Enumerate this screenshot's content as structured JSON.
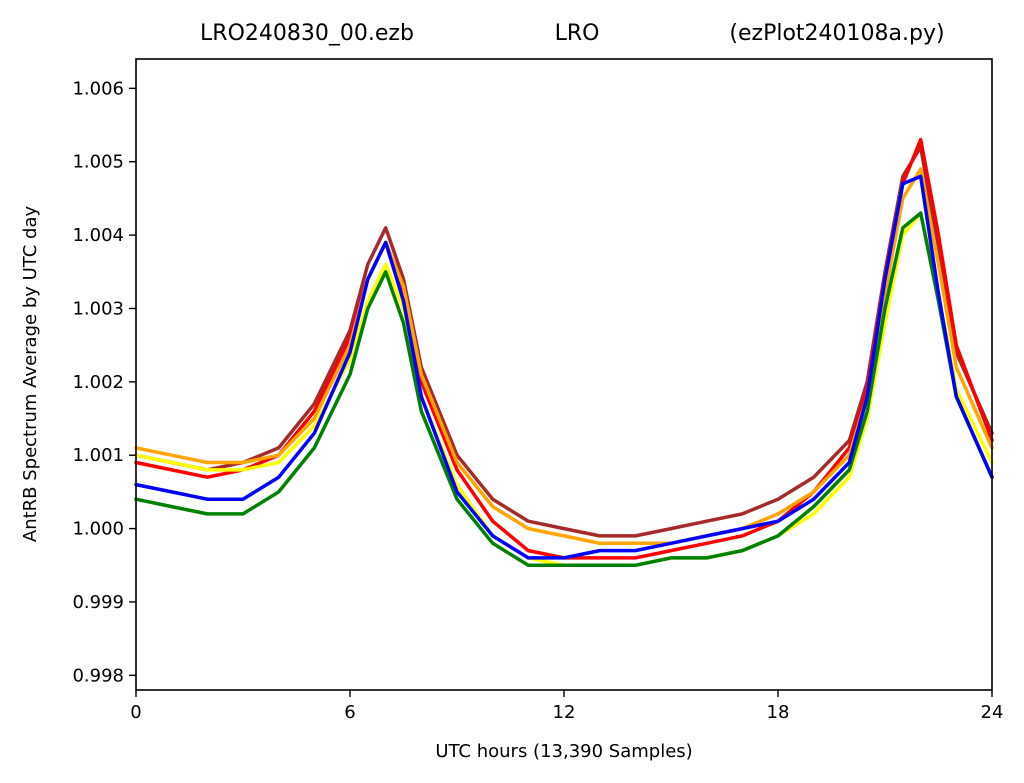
{
  "title": {
    "left": "LRO240830_00.ezb",
    "center": "LRO",
    "right": "(ezPlot240108a.py)"
  },
  "chart_data": {
    "type": "line",
    "xlabel": "UTC hours  (13,390 Samples)",
    "ylabel": "AntRB Spectrum Average by UTC day",
    "xlim": [
      0,
      24
    ],
    "ylim": [
      0.9978,
      1.0064
    ],
    "xticks": [
      0,
      6,
      12,
      18,
      24
    ],
    "xtick_labels": [
      "0",
      "6",
      "12",
      "18",
      "24"
    ],
    "yticks": [
      0.998,
      0.999,
      1.0,
      1.001,
      1.002,
      1.003,
      1.004,
      1.005,
      1.006
    ],
    "ytick_labels": [
      "0.998",
      "0.999",
      "1.000",
      "1.001",
      "1.002",
      "1.003",
      "1.004",
      "1.005",
      "1.006"
    ],
    "grid": false,
    "legend": "none",
    "series": [
      {
        "color": "#a52a2a",
        "x": [
          0,
          1,
          2,
          3,
          4,
          5,
          6,
          6.5,
          7,
          7.5,
          8,
          9,
          10,
          11,
          12,
          13,
          14,
          15,
          16,
          17,
          18,
          19,
          20,
          20.5,
          21,
          21.5,
          22,
          22.5,
          23,
          24
        ],
        "y": [
          1.001,
          1.0009,
          1.0008,
          1.0009,
          1.0011,
          1.0017,
          1.0027,
          1.0036,
          1.0041,
          1.0034,
          1.0022,
          1.001,
          1.0004,
          1.0001,
          1.0,
          0.9999,
          0.9999,
          1.0,
          1.0001,
          1.0002,
          1.0004,
          1.0007,
          1.0012,
          1.002,
          1.0035,
          1.0048,
          1.0052,
          1.0038,
          1.0024,
          1.0013
        ]
      },
      {
        "color": "#ff0000",
        "x": [
          0,
          1,
          2,
          3,
          4,
          5,
          6,
          6.5,
          7,
          7.5,
          8,
          9,
          10,
          11,
          12,
          13,
          14,
          15,
          16,
          17,
          18,
          19,
          20,
          20.5,
          21,
          21.5,
          22,
          22.5,
          23,
          24
        ],
        "y": [
          1.0009,
          1.0008,
          1.0007,
          1.0008,
          1.001,
          1.0016,
          1.0026,
          1.0034,
          1.0039,
          1.0032,
          1.002,
          1.0008,
          1.0001,
          0.9997,
          0.9996,
          0.9996,
          0.9996,
          0.9997,
          0.9998,
          0.9999,
          1.0001,
          1.0005,
          1.0011,
          1.0019,
          1.0034,
          1.0047,
          1.0053,
          1.004,
          1.0025,
          1.0012
        ]
      },
      {
        "color": "#ffa500",
        "x": [
          0,
          1,
          2,
          3,
          4,
          5,
          6,
          6.5,
          7,
          7.5,
          8,
          9,
          10,
          11,
          12,
          13,
          14,
          15,
          16,
          17,
          18,
          19,
          20,
          20.5,
          21,
          21.5,
          22,
          22.5,
          23,
          24
        ],
        "y": [
          1.0011,
          1.001,
          1.0009,
          1.0009,
          1.001,
          1.0015,
          1.0025,
          1.0034,
          1.0039,
          1.0033,
          1.0021,
          1.0009,
          1.0003,
          1.0,
          0.9999,
          0.9998,
          0.9998,
          0.9998,
          0.9999,
          1.0,
          1.0002,
          1.0005,
          1.001,
          1.0018,
          1.0032,
          1.0045,
          1.0049,
          1.0036,
          1.0022,
          1.0011
        ]
      },
      {
        "color": "#ffff00",
        "x": [
          0,
          1,
          2,
          3,
          4,
          5,
          6,
          6.5,
          7,
          7.5,
          8,
          9,
          10,
          11,
          12,
          13,
          14,
          15,
          16,
          17,
          18,
          19,
          20,
          20.5,
          21,
          21.5,
          22,
          22.5,
          23,
          24
        ],
        "y": [
          1.001,
          1.0009,
          1.0008,
          1.0008,
          1.0009,
          1.0014,
          1.0023,
          1.0031,
          1.0036,
          1.003,
          1.0018,
          1.0006,
          0.9999,
          0.9996,
          0.9995,
          0.9995,
          0.9995,
          0.9996,
          0.9996,
          0.9997,
          0.9999,
          1.0002,
          1.0007,
          1.0015,
          1.0028,
          1.004,
          1.0043,
          1.0032,
          1.0019,
          1.0009
        ]
      },
      {
        "color": "#008000",
        "x": [
          0,
          1,
          2,
          3,
          4,
          5,
          6,
          6.5,
          7,
          7.5,
          8,
          9,
          10,
          11,
          12,
          13,
          14,
          15,
          16,
          17,
          18,
          19,
          20,
          20.5,
          21,
          21.5,
          22,
          22.5,
          23,
          24
        ],
        "y": [
          1.0004,
          1.0003,
          1.0002,
          1.0002,
          1.0005,
          1.0011,
          1.0021,
          1.003,
          1.0035,
          1.0028,
          1.0016,
          1.0004,
          0.9998,
          0.9995,
          0.9995,
          0.9995,
          0.9995,
          0.9996,
          0.9996,
          0.9997,
          0.9999,
          1.0003,
          1.0008,
          1.0016,
          1.003,
          1.0041,
          1.0043,
          1.0031,
          1.0018,
          1.0007
        ]
      },
      {
        "color": "#0000ff",
        "x": [
          0,
          1,
          2,
          3,
          4,
          5,
          6,
          6.5,
          7,
          7.5,
          8,
          9,
          10,
          11,
          12,
          13,
          14,
          15,
          16,
          17,
          18,
          19,
          20,
          20.5,
          21,
          21.5,
          22,
          22.5,
          23,
          24
        ],
        "y": [
          1.0006,
          1.0005,
          1.0004,
          1.0004,
          1.0007,
          1.0013,
          1.0024,
          1.0034,
          1.0039,
          1.0031,
          1.0018,
          1.0005,
          0.9999,
          0.9996,
          0.9996,
          0.9997,
          0.9997,
          0.9998,
          0.9999,
          1.0,
          1.0001,
          1.0004,
          1.0009,
          1.0018,
          1.0034,
          1.0047,
          1.0048,
          1.0032,
          1.0018,
          1.0007
        ]
      }
    ]
  }
}
